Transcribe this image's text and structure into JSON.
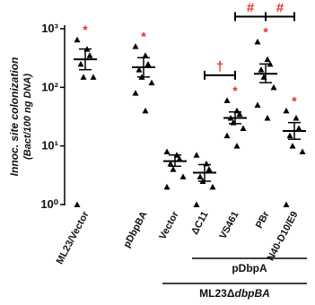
{
  "chart_data": {
    "type": "scatter",
    "ylabel": [
      "Innoc. site colonization",
      "(Bact/100 ng DNA)"
    ],
    "categories": [
      "ML23/Vector",
      "pDbpBA",
      "Vector",
      "ΔC11",
      "VS461",
      "PBr",
      "N40-D10/E9"
    ],
    "values": [
      [
        650,
        450,
        350,
        250,
        150,
        150,
        1
      ],
      [
        500,
        350,
        250,
        200,
        150,
        120,
        80,
        40
      ],
      [
        8,
        7,
        6,
        5,
        4,
        3,
        2
      ],
      [
        7,
        5,
        4,
        3,
        2.5,
        2,
        1
      ],
      [
        60,
        40,
        35,
        30,
        25,
        20,
        15,
        10
      ],
      [
        600,
        300,
        250,
        200,
        150,
        100,
        50,
        30
      ],
      [
        40,
        30,
        20,
        15,
        10,
        8,
        1
      ]
    ],
    "means": [
      300,
      220,
      5.5,
      3.5,
      30,
      170,
      18
    ],
    "ci": [
      [
        200,
        450
      ],
      [
        150,
        320
      ],
      [
        4.5,
        7
      ],
      [
        2.5,
        4.8
      ],
      [
        24,
        38
      ],
      [
        120,
        250
      ],
      [
        13,
        25
      ]
    ],
    "stars": [
      "*",
      "*",
      null,
      null,
      "*",
      "*",
      "*"
    ],
    "comparisons": [
      {
        "between": [
          "ΔC11",
          "VS461"
        ],
        "label": "†"
      },
      {
        "between": [
          "VS461",
          "PBr"
        ],
        "label": "#"
      },
      {
        "between": [
          "PBr",
          "N40-D10/E9"
        ],
        "label": "#"
      }
    ],
    "groups": [
      {
        "from": "ΔC11",
        "to": "N40-D10/E9",
        "label": "pDbpA"
      },
      {
        "from": "Vector",
        "to": "N40-D10/E9",
        "label": "ML23Δ",
        "label_italic": "dbpBA"
      }
    ],
    "log_scale": true,
    "ylim": [
      1,
      1000
    ],
    "yticks": [
      {
        "value": 1,
        "label": "10⁰"
      },
      {
        "value": 10,
        "label": "10¹"
      },
      {
        "value": 100,
        "label": "10²"
      },
      {
        "value": 1000,
        "label": "10³"
      }
    ],
    "color": "#000000",
    "star_color": "#e0322f"
  }
}
